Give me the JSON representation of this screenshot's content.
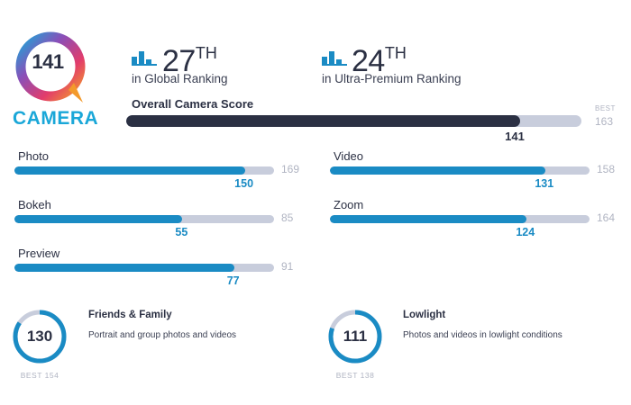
{
  "badge": {
    "score": "141",
    "label": "CAMERA",
    "colors": {
      "ring_gradient": [
        "#1aa7d8",
        "#8a4fb8",
        "#e23c6b",
        "#f39a2b"
      ]
    }
  },
  "rankings": [
    {
      "number": "27",
      "suffix": "TH",
      "description": "in Global Ranking",
      "icon": "bar-chart-icon"
    },
    {
      "number": "24",
      "suffix": "TH",
      "description": "in Ultra-Premium Ranking",
      "icon": "bar-chart-icon"
    }
  ],
  "overall": {
    "label": "Overall Camera Score",
    "value": 141,
    "best_label": "BEST",
    "best": 163
  },
  "subscores": [
    {
      "label": "Photo",
      "value": 150,
      "max": 169
    },
    {
      "label": "Video",
      "value": 131,
      "max": 158
    },
    {
      "label": "Bokeh",
      "value": 55,
      "max": 85
    },
    {
      "label": "Zoom",
      "value": 124,
      "max": 164
    },
    {
      "label": "Preview",
      "value": 77,
      "max": 91
    }
  ],
  "categories": [
    {
      "score": 130,
      "best": 154,
      "best_text": "BEST 154",
      "title": "Friends & Family",
      "description": "Portrait and group photos and videos"
    },
    {
      "score": 111,
      "best": 138,
      "best_text": "BEST 138",
      "title": "Lowlight",
      "description": "Photos and videos in lowlight conditions"
    }
  ],
  "colors": {
    "accent": "#1a8bc4",
    "dark": "#2b3043",
    "track": "#c8cddc",
    "muted": "#b0b4c2"
  }
}
